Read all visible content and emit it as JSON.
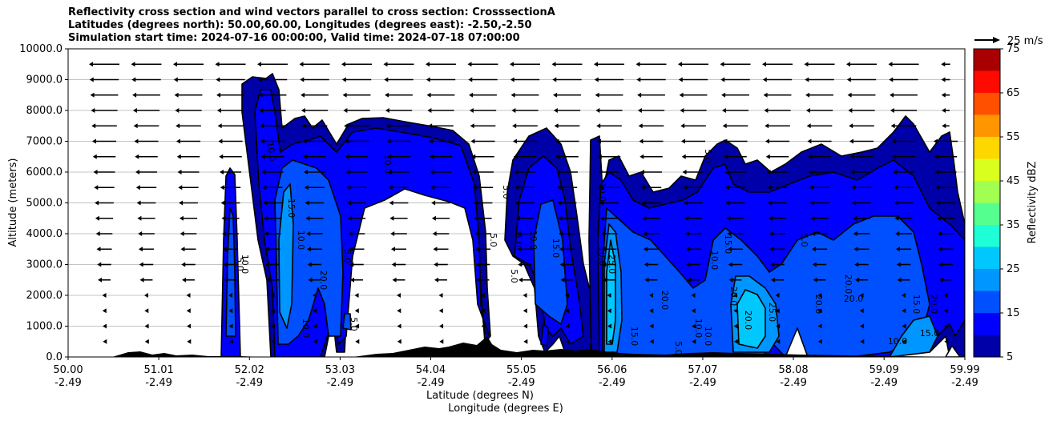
{
  "chart_data": {
    "type": "contour",
    "title_lines": [
      "Reflectivity cross section and wind vectors parallel to cross section: CrosssectionA",
      "Latitudes (degrees north): 50.00,60.00, Longitudes (degrees east): -2.50,-2.50",
      "Simulation start time: 2024-07-16 00:00:00, Valid time: 2024-07-18 07:00:00"
    ],
    "ylabel": "Altitude (meters)",
    "xlabel_lines": [
      "Latitude (degrees N)",
      "Longitude (degrees E)"
    ],
    "ylim": [
      0,
      10000
    ],
    "y_ticks": [
      "0.0",
      "1000.0",
      "2000.0",
      "3000.0",
      "4000.0",
      "5000.0",
      "6000.0",
      "7000.0",
      "8000.0",
      "9000.0",
      "10000.0"
    ],
    "x_ticks": [
      {
        "lat": "50.00",
        "lon": "-2.49"
      },
      {
        "lat": "51.01",
        "lon": "-2.49"
      },
      {
        "lat": "52.02",
        "lon": "-2.49"
      },
      {
        "lat": "53.03",
        "lon": "-2.49"
      },
      {
        "lat": "54.04",
        "lon": "-2.49"
      },
      {
        "lat": "55.05",
        "lon": "-2.49"
      },
      {
        "lat": "56.06",
        "lon": "-2.49"
      },
      {
        "lat": "57.07",
        "lon": "-2.49"
      },
      {
        "lat": "58.08",
        "lon": "-2.49"
      },
      {
        "lat": "59.09",
        "lon": "-2.49"
      },
      {
        "lat": "59.99",
        "lon": "-2.49"
      }
    ],
    "grid": "horizontal",
    "colorbar": {
      "label": "Reflectivity dBZ",
      "levels": [
        5,
        10,
        15,
        20,
        25,
        30,
        35,
        40,
        45,
        50,
        55,
        60,
        65,
        70,
        75
      ],
      "tick_labels": [
        "5",
        "15",
        "25",
        "35",
        "45",
        "55",
        "65",
        "75"
      ],
      "colors": [
        "#0000a8",
        "#0000ff",
        "#0050ff",
        "#0096ff",
        "#00c8ff",
        "#1effd8",
        "#55ff8f",
        "#a0ff50",
        "#d8ff1e",
        "#ffd700",
        "#ff9600",
        "#ff5000",
        "#ff0a00",
        "#a80000"
      ]
    },
    "contour_labels": [
      "5.0",
      "10.0",
      "15.0",
      "20.0",
      "25.0"
    ],
    "quiver_key": "25 m/s",
    "cells": [
      {
        "name": "cell-52.0",
        "base_color": "#0000ff"
      },
      {
        "name": "cell-52.5-54.6",
        "base_color": "#0000a8"
      },
      {
        "name": "cell-55.0-55.9",
        "base_color": "#0000a8"
      },
      {
        "name": "cell-56.0-60.0",
        "base_color": "#0000a8"
      }
    ]
  }
}
